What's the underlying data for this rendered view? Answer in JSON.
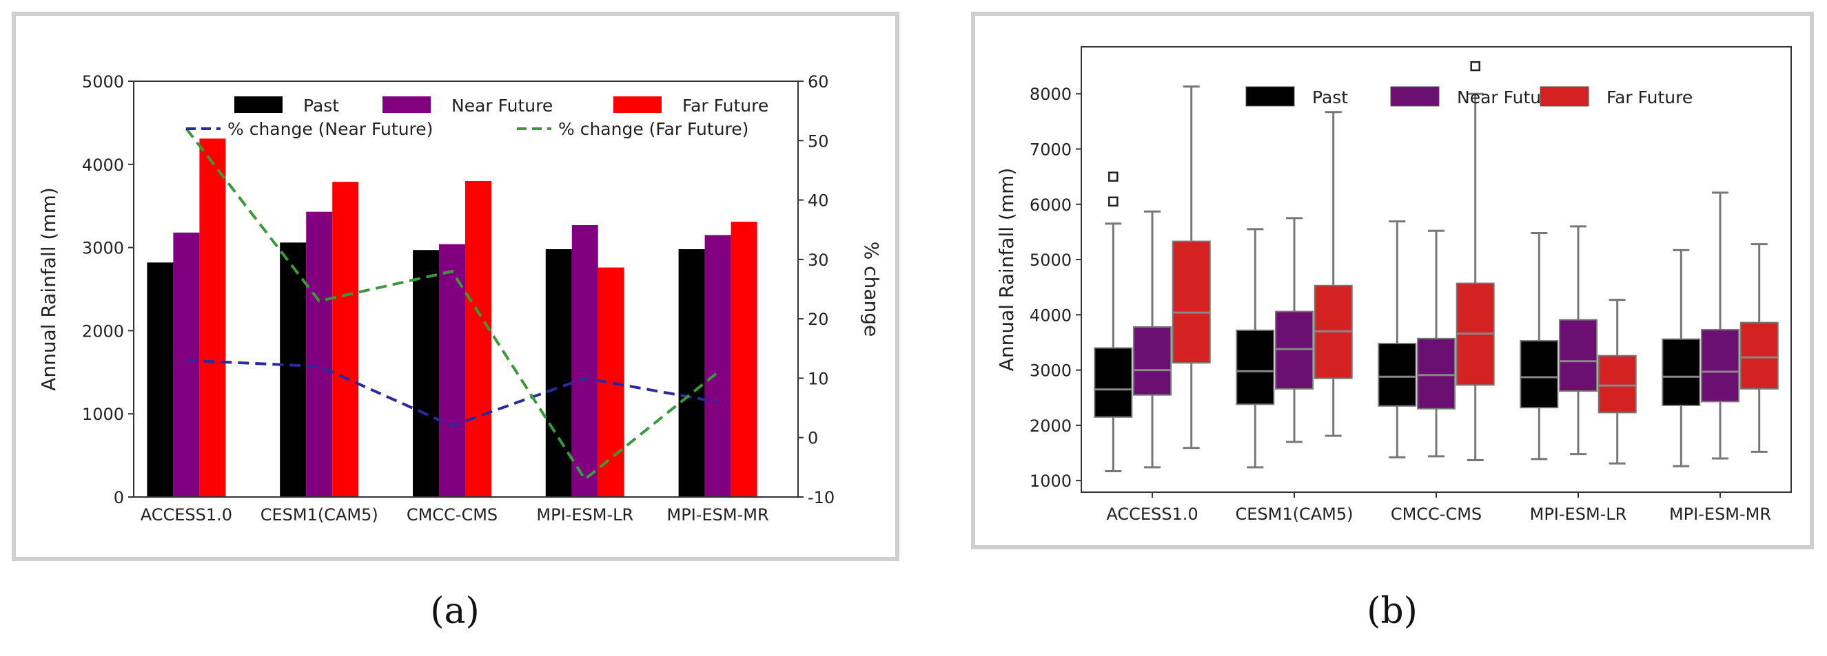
{
  "captions": {
    "a": "(a)",
    "b": "(b)"
  },
  "colors": {
    "past": "#000000",
    "near_a": "#800080",
    "far_a": "#ff0000",
    "near_b": "#6b0f73",
    "far_b": "#d42222",
    "near_line": "#2a2a9a",
    "far_line": "#3a9a3a"
  },
  "chart_data": [
    {
      "type": "bar",
      "categories": [
        "ACCESS1.0",
        "CESM1(CAM5)",
        "CMCC-CMS",
        "MPI-ESM-LR",
        "MPI-ESM-MR"
      ],
      "series": [
        {
          "name": "Past",
          "values": [
            2820,
            3060,
            2970,
            2980,
            2980
          ]
        },
        {
          "name": "Near Future",
          "values": [
            3180,
            3430,
            3040,
            3270,
            3150
          ]
        },
        {
          "name": "Far Future",
          "values": [
            4310,
            3790,
            3800,
            2760,
            3310
          ]
        }
      ],
      "line_series": [
        {
          "name": "% change (Near Future)",
          "values": [
            13,
            12,
            2,
            10,
            6
          ]
        },
        {
          "name": "% change (Far Future)",
          "values": [
            52,
            23,
            28,
            -7,
            11
          ]
        }
      ],
      "ylabel": "Annual Rainfall (mm)",
      "y2label": "% change",
      "ylim": [
        0,
        5000
      ],
      "y2lim": [
        -10,
        60
      ],
      "yticks": [
        "0",
        "1000",
        "2000",
        "3000",
        "4000",
        "5000"
      ],
      "y2ticks": [
        "-10",
        "0",
        "10",
        "20",
        "30",
        "40",
        "50",
        "60"
      ],
      "legend": "top-right",
      "grid": false
    },
    {
      "type": "box",
      "categories": [
        "ACCESS1.0",
        "CESM1(CAM5)",
        "CMCC-CMS",
        "MPI-ESM-LR",
        "MPI-ESM-MR"
      ],
      "series_names": [
        "Past",
        "Near Future",
        "Far Future"
      ],
      "boxes": [
        [
          [
            1170,
            2150,
            2650,
            3400,
            5650
          ],
          [
            1240,
            2550,
            3000,
            3780,
            5870
          ],
          [
            1590,
            3130,
            4040,
            5330,
            8130
          ]
        ],
        [
          [
            1240,
            2380,
            2980,
            3720,
            5550
          ],
          [
            1700,
            2660,
            3380,
            4060,
            5750
          ],
          [
            1810,
            2850,
            3700,
            4530,
            7670
          ]
        ],
        [
          [
            1420,
            2350,
            2880,
            3480,
            5690
          ],
          [
            1440,
            2300,
            2910,
            3570,
            5520
          ],
          [
            1370,
            2730,
            3660,
            4570,
            8000
          ]
        ],
        [
          [
            1390,
            2320,
            2870,
            3530,
            5480
          ],
          [
            1480,
            2620,
            3160,
            3910,
            5600
          ],
          [
            1310,
            2230,
            2720,
            3260,
            4270
          ]
        ],
        [
          [
            1260,
            2360,
            2880,
            3560,
            5170
          ],
          [
            1400,
            2430,
            2970,
            3730,
            6210
          ],
          [
            1520,
            2660,
            3230,
            3860,
            5280
          ]
        ]
      ],
      "outliers": [
        {
          "group": 0,
          "series": 0,
          "values": [
            6050,
            6500
          ]
        },
        {
          "group": 2,
          "series": 2,
          "values": [
            8500
          ]
        }
      ],
      "ylabel": "Annual Rainfall (mm)",
      "ylim": [
        790,
        8850
      ],
      "yticks": [
        "1000",
        "2000",
        "3000",
        "4000",
        "5000",
        "6000",
        "7000",
        "8000"
      ],
      "legend": "top-right",
      "grid": false
    }
  ]
}
